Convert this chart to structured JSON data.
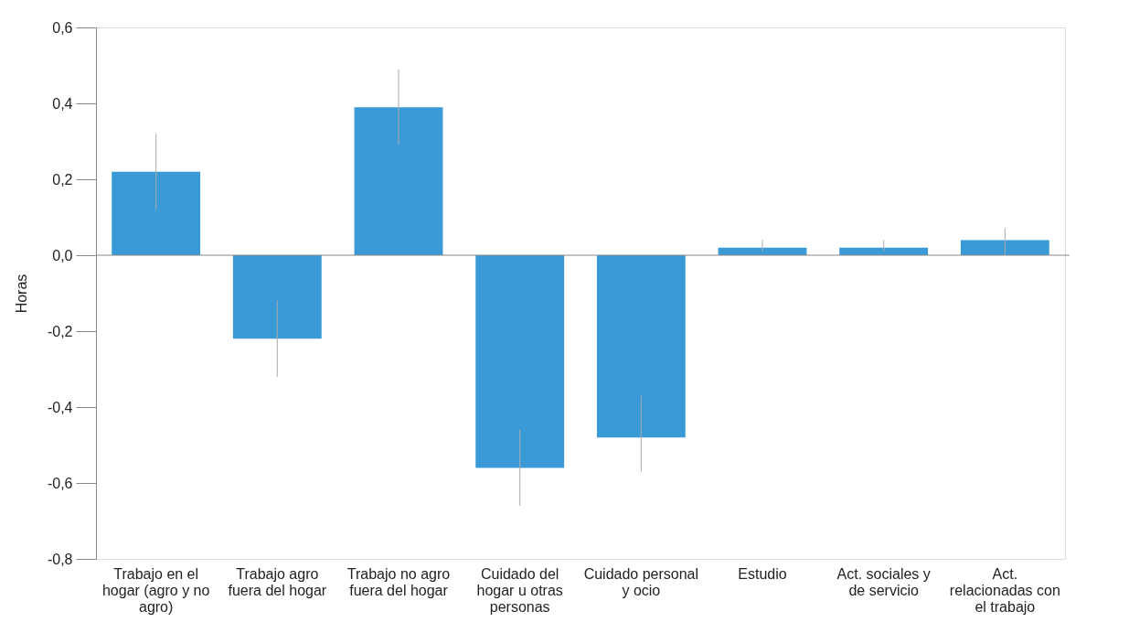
{
  "chart_data": {
    "type": "bar",
    "ylabel": "Horas",
    "categories": [
      "Trabajo en el hogar (agro y no agro)",
      "Trabajo agro fuera del hogar",
      "Trabajo no agro fuera del hogar",
      "Cuidado del hogar u otras personas",
      "Cuidado personal y ocio",
      "Estudio",
      "Act. sociales y de servicio",
      "Act. relacionadas con el trabajo"
    ],
    "values": [
      0.22,
      -0.22,
      0.39,
      -0.56,
      -0.48,
      0.02,
      0.02,
      0.04
    ],
    "errors": [
      [
        0.12,
        0.32
      ],
      [
        -0.32,
        -0.12
      ],
      [
        0.29,
        0.49
      ],
      [
        -0.66,
        -0.46
      ],
      [
        -0.57,
        -0.37
      ],
      [
        0.01,
        0.04
      ],
      [
        0.01,
        0.04
      ],
      [
        0.0,
        0.07
      ]
    ],
    "color": "#3a9ad8",
    "ylim": [
      -0.8,
      0.6
    ],
    "yticks": [
      {
        "value": -0.8,
        "label": "-0,8"
      },
      {
        "value": -0.6,
        "label": "-0,6"
      },
      {
        "value": -0.4,
        "label": "-0,4"
      },
      {
        "value": -0.2,
        "label": "-0,2"
      },
      {
        "value": 0,
        "label": "0,0"
      },
      {
        "value": 0.2,
        "label": "0,2"
      },
      {
        "value": 0.4,
        "label": "0,4"
      },
      {
        "value": 0.6,
        "label": "0,6"
      }
    ],
    "ref_lines": [
      {
        "axis": "y",
        "value": 0,
        "color": "#888888"
      }
    ],
    "grid": false
  }
}
